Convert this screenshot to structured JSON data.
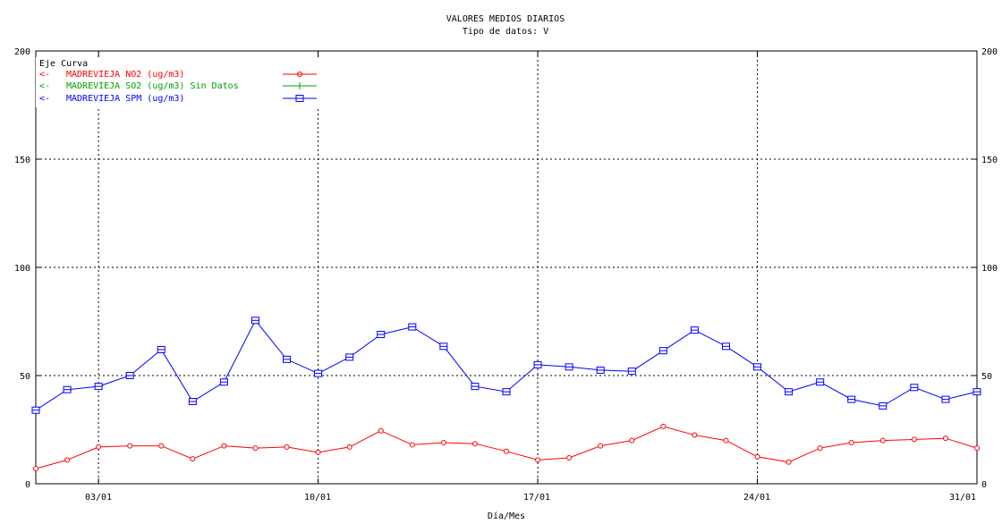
{
  "chart_data": {
    "type": "line",
    "title": "VALORES MEDIOS DIARIOS",
    "subtitle": "Tipo de datos:  V",
    "xlabel": "Día/Mes",
    "ylabel": "",
    "x_ticks": [
      "03/01",
      "10/01",
      "17/01",
      "24/01",
      "31/01"
    ],
    "y_ticks": [
      "0",
      "50",
      "100",
      "150",
      "200"
    ],
    "ylim": [
      0,
      200
    ],
    "xlim": [
      1,
      31
    ],
    "grid": true,
    "legend_header": "Eje Curva",
    "series": [
      {
        "name": "MADREVIEJA NO2  (ug/m3)",
        "legend_prefix": "<-",
        "color": "#ff0000",
        "marker": "circle",
        "x": [
          1,
          2,
          3,
          4,
          5,
          6,
          7,
          8,
          9,
          10,
          11,
          12,
          13,
          14,
          15,
          16,
          17,
          18,
          19,
          20,
          21,
          22,
          23,
          24,
          25,
          26,
          27,
          28,
          29,
          30,
          31
        ],
        "values": [
          7,
          11,
          17,
          17.5,
          17.5,
          11.5,
          17.5,
          16.5,
          17,
          14.5,
          17,
          24.5,
          18,
          19,
          18.5,
          15,
          11,
          12,
          17.5,
          20,
          26.5,
          22.5,
          20,
          12.5,
          10,
          16.5,
          19,
          20,
          20.5,
          21,
          16.5
        ]
      },
      {
        "name": "MADREVIEJA SO2  (ug/m3) Sin Datos",
        "legend_prefix": "<-",
        "color": "#00a000",
        "marker": "plus",
        "x": [],
        "values": []
      },
      {
        "name": "MADREVIEJA SPM  (ug/m3)",
        "legend_prefix": "<-",
        "color": "#0000ff",
        "marker": "square",
        "x": [
          1,
          2,
          3,
          4,
          5,
          6,
          7,
          8,
          9,
          10,
          11,
          12,
          13,
          14,
          15,
          16,
          17,
          18,
          19,
          20,
          21,
          22,
          23,
          24,
          25,
          26,
          27,
          28,
          29,
          30,
          31
        ],
        "values": [
          34,
          43.5,
          45,
          50,
          62,
          38,
          47,
          75.5,
          57.5,
          51,
          58.5,
          69,
          72.5,
          63.5,
          45,
          42.5,
          55,
          54,
          52.5,
          52,
          61.5,
          71,
          63.5,
          54,
          42.5,
          47,
          39,
          36,
          44.5,
          39,
          42.5
        ]
      }
    ]
  }
}
